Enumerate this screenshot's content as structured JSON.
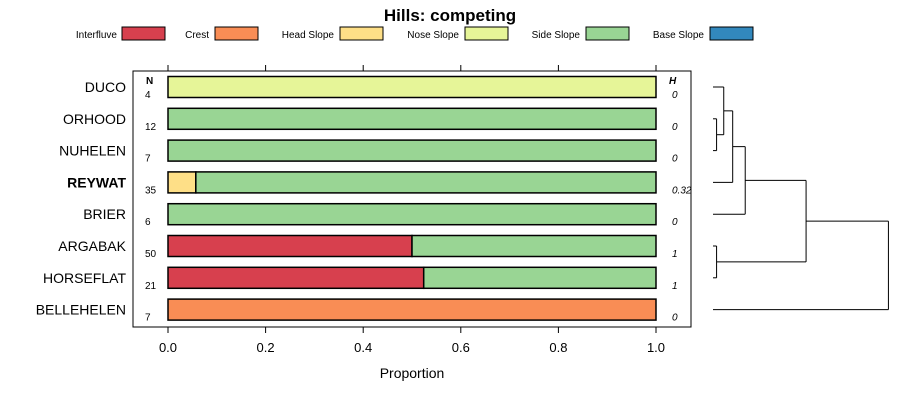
{
  "chart_data": {
    "type": "bar",
    "title": "Hills: competing",
    "xlabel": "Proportion",
    "xlim": [
      0,
      1
    ],
    "ticks": [
      "0.0",
      "0.2",
      "0.4",
      "0.6",
      "0.8",
      "1.0"
    ],
    "tick_values": [
      0,
      0.2,
      0.4,
      0.6,
      0.8,
      1.0
    ],
    "n_header": "N",
    "h_header": "H",
    "legend": [
      {
        "name": "Interfluve",
        "color": "#d7404e"
      },
      {
        "name": "Crest",
        "color": "#f98d55"
      },
      {
        "name": "Head Slope",
        "color": "#fedf87"
      },
      {
        "name": "Nose Slope",
        "color": "#e6f598"
      },
      {
        "name": "Side Slope",
        "color": "#99d594"
      },
      {
        "name": "Base Slope",
        "color": "#3288bd"
      }
    ],
    "rows": [
      {
        "label": "DUCO",
        "n": "4",
        "h": "0",
        "bold": false,
        "segments": [
          {
            "category": "Nose Slope",
            "value": 1.0
          }
        ]
      },
      {
        "label": "ORHOOD",
        "n": "12",
        "h": "0",
        "bold": false,
        "segments": [
          {
            "category": "Side Slope",
            "value": 1.0
          }
        ]
      },
      {
        "label": "NUHELEN",
        "n": "7",
        "h": "0",
        "bold": false,
        "segments": [
          {
            "category": "Side Slope",
            "value": 1.0
          }
        ]
      },
      {
        "label": "REYWAT",
        "n": "35",
        "h": "0.32",
        "bold": true,
        "segments": [
          {
            "category": "Head Slope",
            "value": 0.057
          },
          {
            "category": "Side Slope",
            "value": 0.943
          }
        ]
      },
      {
        "label": "BRIER",
        "n": "6",
        "h": "0",
        "bold": false,
        "segments": [
          {
            "category": "Side Slope",
            "value": 1.0
          }
        ]
      },
      {
        "label": "ARGABAK",
        "n": "50",
        "h": "1",
        "bold": false,
        "segments": [
          {
            "category": "Interfluve",
            "value": 0.5
          },
          {
            "category": "Side Slope",
            "value": 0.5
          }
        ]
      },
      {
        "label": "HORSEFLAT",
        "n": "21",
        "h": "1",
        "bold": false,
        "segments": [
          {
            "category": "Interfluve",
            "value": 0.524
          },
          {
            "category": "Side Slope",
            "value": 0.476
          }
        ]
      },
      {
        "label": "BELLEHELEN",
        "n": "7",
        "h": "0",
        "bold": false,
        "segments": [
          {
            "category": "Crest",
            "value": 1.0
          }
        ]
      }
    ],
    "dendrogram": {
      "merges": [
        {
          "a": 1,
          "b": 2,
          "height": 0.02
        },
        {
          "a": 5,
          "b": 6,
          "height": 0.02
        },
        {
          "a": -1,
          "b": 0,
          "height": 0.06
        },
        {
          "a": -3,
          "b": 3,
          "height": 0.11
        },
        {
          "a": -4,
          "b": 4,
          "height": 0.18
        },
        {
          "a": -5,
          "b": -2,
          "height": 0.52
        },
        {
          "a": -6,
          "b": 7,
          "height": 0.98
        }
      ],
      "max_height": 1.0
    }
  }
}
